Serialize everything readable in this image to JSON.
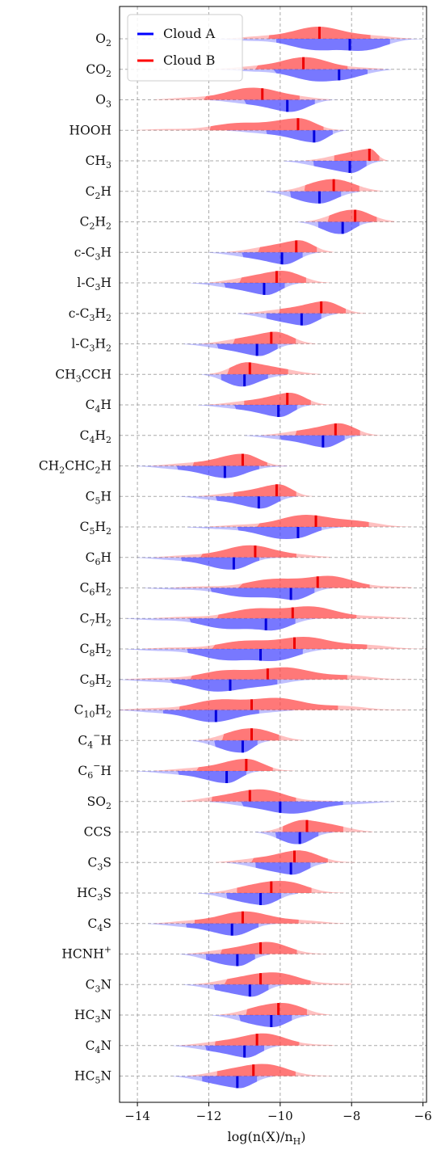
{
  "chart_data": {
    "type": "violin",
    "xlabel": "log(n(X)/n_H)",
    "xlim": [
      -14.5,
      -5.9
    ],
    "xticks": [
      -14,
      -12,
      -10,
      -8,
      -6
    ],
    "xtick_labels": [
      "−14",
      "−12",
      "−10",
      "−8",
      "−6"
    ],
    "legend": {
      "placement": "top-left",
      "entries": [
        {
          "label": "Cloud A",
          "color": "#0000ff"
        },
        {
          "label": "Cloud B",
          "color": "#ff0000"
        }
      ]
    },
    "series": [
      {
        "name": "Cloud A",
        "color": "#3333ff",
        "side": "below"
      },
      {
        "name": "Cloud B",
        "color": "#ff2222",
        "side": "above"
      }
    ],
    "species": [
      {
        "main": "O",
        "sub": "2",
        "sup": "",
        "after": "",
        "a": {
          "median": -8.05,
          "min": -11.8,
          "max": -6.0
        },
        "b": {
          "median": -8.9,
          "min": -11.5,
          "max": -6.3
        }
      },
      {
        "main": "CO",
        "sub": "2",
        "sup": "",
        "after": "",
        "a": {
          "median": -8.35,
          "min": -11.7,
          "max": -6.9
        },
        "b": {
          "median": -9.35,
          "min": -11.8,
          "max": -7.1
        }
      },
      {
        "main": "O",
        "sub": "3",
        "sup": "",
        "after": "",
        "a": {
          "median": -9.8,
          "min": -12.0,
          "max": -8.4
        },
        "b": {
          "median": -10.5,
          "min": -13.5,
          "max": -8.6
        }
      },
      {
        "main": "HOOH",
        "sub": "",
        "sup": "",
        "after": "",
        "a": {
          "median": -9.05,
          "min": -11.5,
          "max": -8.1
        },
        "b": {
          "median": -9.5,
          "min": -14.0,
          "max": -8.2
        }
      },
      {
        "main": "CH",
        "sub": "3",
        "sup": "",
        "after": "",
        "a": {
          "median": -8.05,
          "min": -9.9,
          "max": -7.2
        },
        "b": {
          "median": -7.5,
          "min": -9.3,
          "max": -7.0
        }
      },
      {
        "main": "C",
        "sub": "2",
        "sup": "",
        "after": "H",
        "a": {
          "median": -8.9,
          "min": -10.4,
          "max": -7.8
        },
        "b": {
          "median": -8.5,
          "min": -10.0,
          "max": -7.2
        }
      },
      {
        "main": "C",
        "sub": "2",
        "sup": "",
        "after": "H<sub>2</sub>",
        "a": {
          "median": -8.25,
          "min": -9.5,
          "max": -7.4
        },
        "b": {
          "median": -7.9,
          "min": -9.3,
          "max": -6.8
        }
      },
      {
        "main": "c-C",
        "sub": "3",
        "sup": "",
        "after": "H",
        "a": {
          "median": -9.95,
          "min": -12.0,
          "max": -8.9
        },
        "b": {
          "median": -9.55,
          "min": -11.5,
          "max": -8.5
        }
      },
      {
        "main": "l-C",
        "sub": "3",
        "sup": "",
        "after": "H",
        "a": {
          "median": -10.45,
          "min": -12.5,
          "max": -9.4
        },
        "b": {
          "median": -10.1,
          "min": -12.0,
          "max": -8.6
        }
      },
      {
        "main": "c-C",
        "sub": "3",
        "sup": "",
        "after": "H<sub>2</sub>",
        "a": {
          "median": -9.4,
          "min": -11.2,
          "max": -8.4
        },
        "b": {
          "median": -8.85,
          "min": -11.0,
          "max": -7.6
        }
      },
      {
        "main": "l-C",
        "sub": "3",
        "sup": "",
        "after": "H<sub>2</sub>",
        "a": {
          "median": -10.65,
          "min": -12.7,
          "max": -9.6
        },
        "b": {
          "median": -10.25,
          "min": -12.2,
          "max": -9.0
        }
      },
      {
        "main": "CH",
        "sub": "3",
        "sup": "",
        "after": "CCH",
        "a": {
          "median": -11.0,
          "min": -12.2,
          "max": -9.8
        },
        "b": {
          "median": -10.85,
          "min": -12.0,
          "max": -8.9
        }
      },
      {
        "main": "C",
        "sub": "4",
        "sup": "",
        "after": "H",
        "a": {
          "median": -10.05,
          "min": -12.3,
          "max": -9.1
        },
        "b": {
          "median": -9.8,
          "min": -12.0,
          "max": -8.6
        }
      },
      {
        "main": "C",
        "sub": "4",
        "sup": "",
        "after": "H<sub>2</sub>",
        "a": {
          "median": -8.8,
          "min": -11.0,
          "max": -7.7
        },
        "b": {
          "median": -8.45,
          "min": -10.5,
          "max": -7.2
        }
      },
      {
        "main": "CH",
        "sub": "2",
        "sup": "",
        "after": "CHC<sub>2</sub>H",
        "a": {
          "median": -11.55,
          "min": -14.0,
          "max": -9.8
        },
        "b": {
          "median": -11.05,
          "min": -13.6,
          "max": -9.8
        }
      },
      {
        "main": "C",
        "sub": "5",
        "sup": "",
        "after": "H",
        "a": {
          "median": -10.6,
          "min": -12.8,
          "max": -9.5
        },
        "b": {
          "median": -10.1,
          "min": -12.3,
          "max": -9.1
        }
      },
      {
        "main": "C",
        "sub": "5",
        "sup": "",
        "after": "H<sub>2</sub>",
        "a": {
          "median": -9.5,
          "min": -12.6,
          "max": -8.3
        },
        "b": {
          "median": -9.0,
          "min": -12.0,
          "max": -6.3
        }
      },
      {
        "main": "C",
        "sub": "6",
        "sup": "",
        "after": "H",
        "a": {
          "median": -11.3,
          "min": -14.0,
          "max": -10.0
        },
        "b": {
          "median": -10.7,
          "min": -13.5,
          "max": -8.6
        }
      },
      {
        "main": "C",
        "sub": "6",
        "sup": "",
        "after": "H<sub>2</sub>",
        "a": {
          "median": -9.7,
          "min": -13.8,
          "max": -8.5
        },
        "b": {
          "median": -8.95,
          "min": -13.0,
          "max": -6.3
        }
      },
      {
        "main": "C",
        "sub": "7",
        "sup": "",
        "after": "H<sub>2</sub>",
        "a": {
          "median": -10.4,
          "min": -14.3,
          "max": -8.9
        },
        "b": {
          "median": -9.65,
          "min": -13.5,
          "max": -6.4
        }
      },
      {
        "main": "C",
        "sub": "8",
        "sup": "",
        "after": "H<sub>2</sub>",
        "a": {
          "median": -10.55,
          "min": -14.3,
          "max": -8.4
        },
        "b": {
          "median": -9.6,
          "min": -13.8,
          "max": -5.9
        }
      },
      {
        "main": "C",
        "sub": "9",
        "sup": "",
        "after": "H<sub>2</sub>",
        "a": {
          "median": -11.4,
          "min": -14.5,
          "max": -9.0
        },
        "b": {
          "median": -10.35,
          "min": -14.3,
          "max": -6.3
        }
      },
      {
        "main": "C",
        "sub": "10",
        "sup": "",
        "after": "H<sub>2</sub>",
        "a": {
          "median": -11.8,
          "min": -14.5,
          "max": -9.6
        },
        "b": {
          "median": -10.8,
          "min": -14.5,
          "max": -6.4
        }
      },
      {
        "main": "C",
        "sub": "4",
        "sup": "−",
        "after": "H",
        "a": {
          "median": -11.05,
          "min": -12.5,
          "max": -10.3
        },
        "b": {
          "median": -10.8,
          "min": -12.3,
          "max": -9.4
        }
      },
      {
        "main": "C",
        "sub": "6",
        "sup": "−",
        "after": "H",
        "a": {
          "median": -11.5,
          "min": -14.0,
          "max": -10.5
        },
        "b": {
          "median": -10.95,
          "min": -13.5,
          "max": -9.6
        }
      },
      {
        "main": "SO",
        "sub": "2",
        "sup": "",
        "after": "",
        "a": {
          "median": -10.0,
          "min": -12.0,
          "max": -6.8
        },
        "b": {
          "median": -10.85,
          "min": -12.8,
          "max": -8.5
        }
      },
      {
        "main": "CCS",
        "sub": "",
        "sup": "",
        "after": "",
        "a": {
          "median": -9.45,
          "min": -10.7,
          "max": -8.5
        },
        "b": {
          "median": -9.25,
          "min": -10.5,
          "max": -7.4
        }
      },
      {
        "main": "C",
        "sub": "3",
        "sup": "",
        "after": "S",
        "a": {
          "median": -9.7,
          "min": -11.5,
          "max": -8.7
        },
        "b": {
          "median": -9.6,
          "min": -11.8,
          "max": -7.9
        }
      },
      {
        "main": "HC",
        "sub": "3",
        "sup": "",
        "after": "S",
        "a": {
          "median": -10.55,
          "min": -12.3,
          "max": -9.5
        },
        "b": {
          "median": -10.25,
          "min": -12.0,
          "max": -8.2
        }
      },
      {
        "main": "C",
        "sub": "4",
        "sup": "",
        "after": "S",
        "a": {
          "median": -11.35,
          "min": -13.7,
          "max": -10.0
        },
        "b": {
          "median": -11.05,
          "min": -13.5,
          "max": -8.2
        }
      },
      {
        "main": "HCNH",
        "sub": "",
        "sup": "+",
        "after": "",
        "a": {
          "median": -11.2,
          "min": -12.8,
          "max": -10.3
        },
        "b": {
          "median": -10.55,
          "min": -12.6,
          "max": -8.7
        }
      },
      {
        "main": "C",
        "sub": "3",
        "sup": "",
        "after": "N",
        "a": {
          "median": -10.85,
          "min": -12.7,
          "max": -9.9
        },
        "b": {
          "median": -10.55,
          "min": -12.4,
          "max": -8.0
        }
      },
      {
        "main": "HC",
        "sub": "3",
        "sup": "",
        "after": "N",
        "a": {
          "median": -10.25,
          "min": -11.9,
          "max": -9.2
        },
        "b": {
          "median": -10.05,
          "min": -11.7,
          "max": -8.6
        }
      },
      {
        "main": "C",
        "sub": "4",
        "sup": "",
        "after": "N",
        "a": {
          "median": -11.0,
          "min": -13.0,
          "max": -10.0
        },
        "b": {
          "median": -10.65,
          "min": -12.8,
          "max": -8.5
        }
      },
      {
        "main": "HC",
        "sub": "5",
        "sup": "",
        "after": "N",
        "a": {
          "median": -11.2,
          "min": -13.0,
          "max": -10.2
        },
        "b": {
          "median": -10.75,
          "min": -12.6,
          "max": -8.6
        }
      }
    ]
  }
}
